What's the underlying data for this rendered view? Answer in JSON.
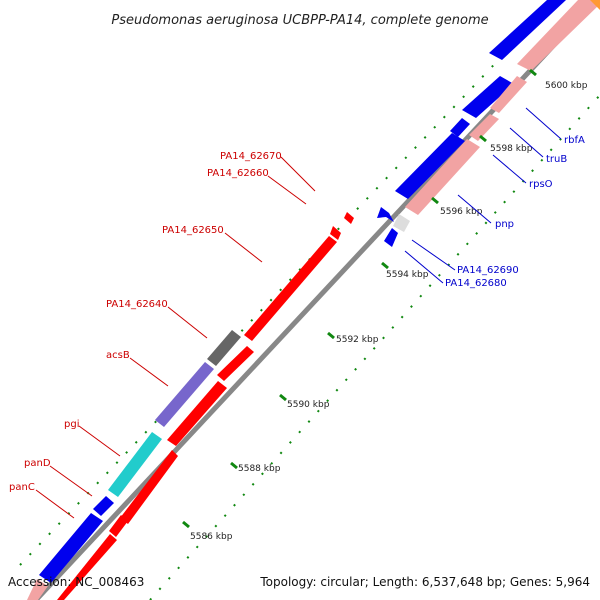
{
  "title": "Pseudomonas aeruginosa UCBPP-PA14, complete genome",
  "accession": "Accession: NC_008463",
  "topology": "Topology: circular; Length: 6,537,648 bp; Genes: 5,964",
  "colors": {
    "forward_cds": "#ff0000",
    "reverse_cds": "#0000ee",
    "forward_rna_or_other": "#f2a3a3",
    "backbone": "#888888",
    "tick": "#118811",
    "label_forward": "#cc0000",
    "label_reverse": "#0000cc"
  },
  "scale_ticks": [
    "5586 kbp",
    "5588 kbp",
    "5590 kbp",
    "5592 kbp",
    "5594 kbp",
    "5596 kbp",
    "5598 kbp",
    "5600 kbp"
  ],
  "gene_labels_left": [
    "PA14_62670",
    "PA14_62660",
    "PA14_62650",
    "PA14_62640",
    "acsB",
    "pgi",
    "panD",
    "panC"
  ],
  "gene_labels_right": [
    "rbfA",
    "truB",
    "rpsO",
    "pnp",
    "PA14_62690",
    "PA14_62680"
  ]
}
